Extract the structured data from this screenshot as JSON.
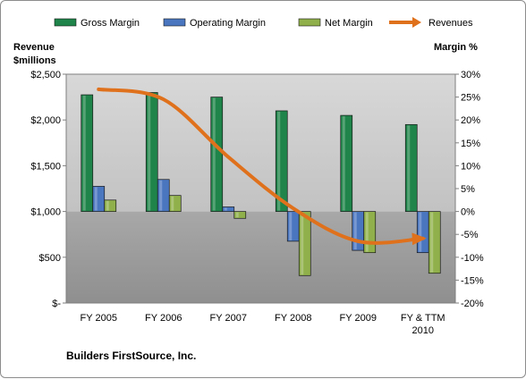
{
  "chart_data": {
    "type": "bar",
    "footer": "Builders FirstSource, Inc.",
    "left_axis_title": [
      "Revenue",
      "$millions"
    ],
    "right_axis_title": "Margin %",
    "categories": [
      [
        "FY 2005"
      ],
      [
        "FY 2006"
      ],
      [
        "FY 2007"
      ],
      [
        "FY 2008"
      ],
      [
        "FY 2009"
      ],
      [
        "FY & TTM",
        "2010"
      ]
    ],
    "left_ticks": [
      "$-",
      "$500",
      "$1,000",
      "$1,500",
      "$2,000",
      "$2,500"
    ],
    "right_ticks": [
      "-20%",
      "-15%",
      "-10%",
      "-5%",
      "0%",
      "5%",
      "10%",
      "15%",
      "20%",
      "25%",
      "30%"
    ],
    "ylim_left": [
      0,
      2500
    ],
    "ylim_right": [
      -20,
      30
    ],
    "legend_position": "top",
    "series": [
      {
        "name": "Gross Margin",
        "axis": "right",
        "kind": "bar",
        "color": "#1e8449",
        "values": [
          25.5,
          26,
          25,
          22,
          21,
          19
        ]
      },
      {
        "name": "Operating Margin",
        "axis": "right",
        "kind": "bar",
        "color": "#4a76c0",
        "values": [
          5.5,
          7,
          1,
          -6.5,
          -8.5,
          -9
        ]
      },
      {
        "name": "Net Margin",
        "axis": "right",
        "kind": "bar",
        "color": "#8fb04a",
        "values": [
          2.5,
          3.5,
          -1.5,
          -14,
          -9,
          -13.5
        ]
      },
      {
        "name": "Revenues",
        "axis": "left",
        "kind": "line",
        "color": "#e0711c",
        "values": [
          2335,
          2225,
          1595,
          1035,
          675,
          705
        ]
      }
    ]
  }
}
